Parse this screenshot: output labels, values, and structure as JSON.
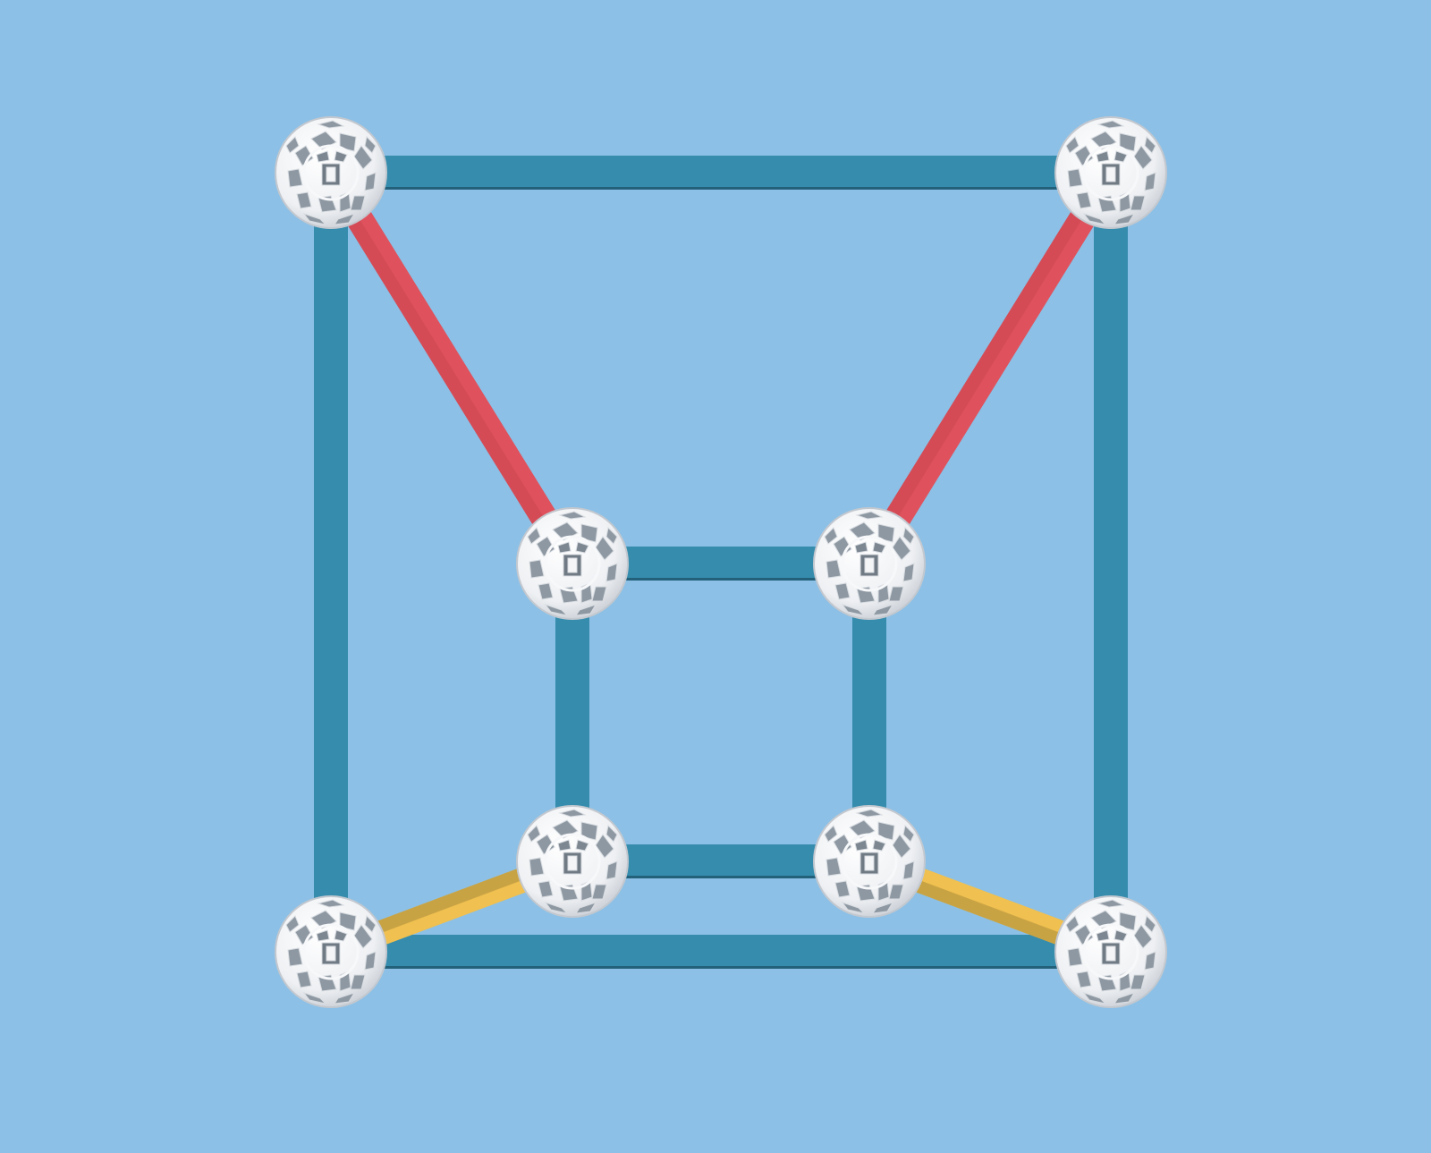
{
  "scene": {
    "background_color": "#8cc0e6",
    "colors": {
      "blue_strut": "#358cad",
      "blue_strut_shadow": "#23607a",
      "red_strut": "#d44b56",
      "red_strut_highlight": "#e85a64",
      "yellow_strut": "#f0c050",
      "yellow_strut_shadow": "#a88a3a",
      "ball_fill": "#f4f5f7",
      "ball_hole": "#7f8a94",
      "ball_edge": "#c8ccd2"
    },
    "balls": [
      {
        "id": "outer-top-left",
        "kind": "zometool-ball-icon"
      },
      {
        "id": "outer-top-right",
        "kind": "zometool-ball-icon"
      },
      {
        "id": "outer-bottom-left",
        "kind": "zometool-ball-icon"
      },
      {
        "id": "outer-bottom-right",
        "kind": "zometool-ball-icon"
      },
      {
        "id": "inner-top-left",
        "kind": "zometool-ball-icon"
      },
      {
        "id": "inner-top-right",
        "kind": "zometool-ball-icon"
      },
      {
        "id": "inner-bottom-left",
        "kind": "zometool-ball-icon"
      },
      {
        "id": "inner-bottom-right",
        "kind": "zometool-ball-icon"
      }
    ],
    "struts": [
      {
        "id": "outer-top",
        "color": "blue",
        "from": "outer-top-left",
        "to": "outer-top-right"
      },
      {
        "id": "outer-bottom",
        "color": "blue",
        "from": "outer-bottom-left",
        "to": "outer-bottom-right"
      },
      {
        "id": "outer-left",
        "color": "blue",
        "from": "outer-top-left",
        "to": "outer-bottom-left"
      },
      {
        "id": "outer-right",
        "color": "blue",
        "from": "outer-top-right",
        "to": "outer-bottom-right"
      },
      {
        "id": "inner-top",
        "color": "blue",
        "from": "inner-top-left",
        "to": "inner-top-right"
      },
      {
        "id": "inner-bottom",
        "color": "blue",
        "from": "inner-bottom-left",
        "to": "inner-bottom-right"
      },
      {
        "id": "inner-left",
        "color": "blue",
        "from": "inner-top-left",
        "to": "inner-bottom-left"
      },
      {
        "id": "inner-right",
        "color": "blue",
        "from": "inner-top-right",
        "to": "inner-bottom-right"
      },
      {
        "id": "diag-top-left",
        "color": "red",
        "from": "outer-top-left",
        "to": "inner-top-left"
      },
      {
        "id": "diag-top-right",
        "color": "red",
        "from": "outer-top-right",
        "to": "inner-top-right"
      },
      {
        "id": "diag-bottom-left",
        "color": "yellow",
        "from": "outer-bottom-left",
        "to": "inner-bottom-left"
      },
      {
        "id": "diag-bottom-right",
        "color": "yellow",
        "from": "outer-bottom-right",
        "to": "inner-bottom-right"
      }
    ]
  }
}
